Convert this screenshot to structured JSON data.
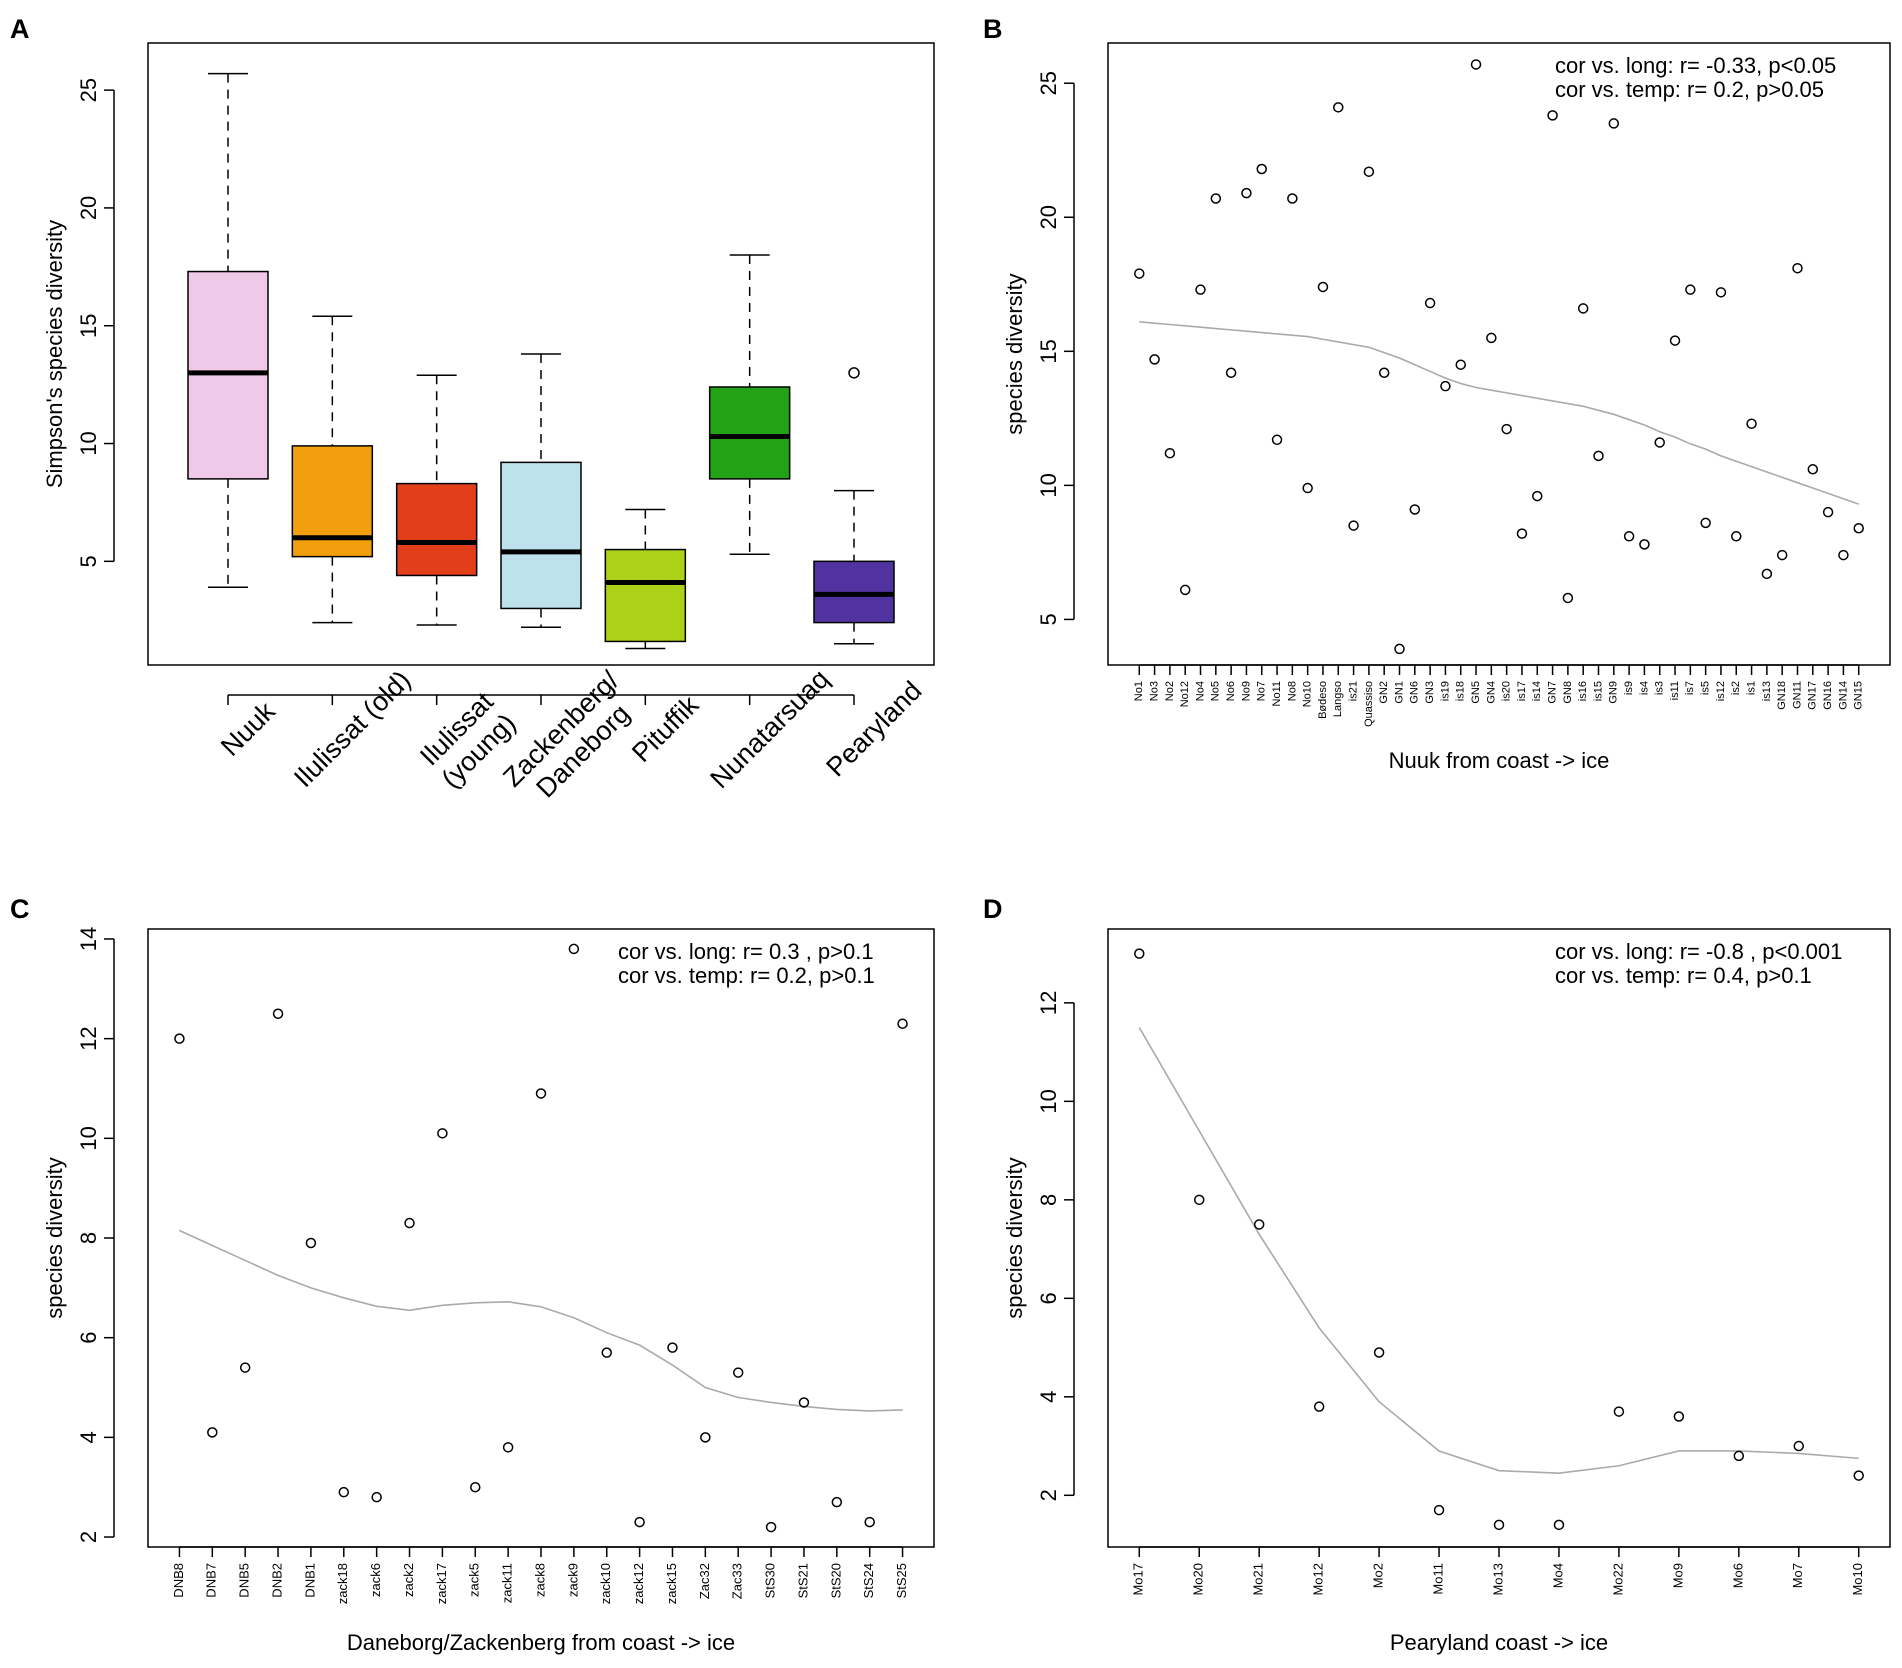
{
  "chart_data": [
    {
      "panel": "A",
      "type": "boxplot",
      "ylabel": "Simpson's species diversity",
      "ylim": [
        0.6,
        27.0
      ],
      "yticks": [
        5,
        10,
        15,
        20,
        25
      ],
      "groups": [
        {
          "name": "Nuuk",
          "label_lines": [
            "Nuuk"
          ],
          "color": "#F0C8E8",
          "whisker_low": 3.9,
          "q1": 8.5,
          "median": 13.0,
          "q3": 17.3,
          "whisker_high": 25.7,
          "outliers": []
        },
        {
          "name": "Ilulissat (old)",
          "label_lines": [
            "Ilulissat (old)"
          ],
          "color": "#F29F0F",
          "whisker_low": 2.4,
          "q1": 5.2,
          "median": 6.0,
          "q3": 9.9,
          "whisker_high": 15.4,
          "outliers": []
        },
        {
          "name": "Ilulissat (young)",
          "label_lines": [
            "Ilulissat",
            "(young)"
          ],
          "color": "#E23E19",
          "whisker_low": 2.3,
          "q1": 4.4,
          "median": 5.8,
          "q3": 8.3,
          "whisker_high": 12.9,
          "outliers": []
        },
        {
          "name": "Zackenberg/ Daneborg",
          "label_lines": [
            "Zackenberg/",
            "Daneborg"
          ],
          "color": "#BDE2EC",
          "whisker_low": 2.2,
          "q1": 3.0,
          "median": 5.4,
          "q3": 9.2,
          "whisker_high": 13.8,
          "outliers": []
        },
        {
          "name": "Pituffik",
          "label_lines": [
            "Pituffik"
          ],
          "color": "#ABD119",
          "whisker_low": 1.3,
          "q1": 1.6,
          "median": 4.1,
          "q3": 5.5,
          "whisker_high": 7.2,
          "outliers": []
        },
        {
          "name": "Nunatarsuaq",
          "label_lines": [
            "Nunatarsuaq"
          ],
          "color": "#22A214",
          "whisker_low": 5.3,
          "q1": 8.5,
          "median": 10.3,
          "q3": 12.4,
          "whisker_high": 18.0,
          "outliers": []
        },
        {
          "name": "Pearyland",
          "label_lines": [
            "Pearyland"
          ],
          "color": "#5032A0",
          "whisker_low": 1.5,
          "q1": 2.4,
          "median": 3.6,
          "q3": 5.0,
          "whisker_high": 8.0,
          "outliers": [
            13.0
          ]
        }
      ]
    },
    {
      "panel": "B",
      "type": "scatter",
      "xlabel": "Nuuk from coast -> ice",
      "ylabel": "species diversity",
      "ylim": [
        3.3,
        26.5
      ],
      "yticks": [
        5,
        10,
        15,
        20,
        25
      ],
      "annotation": [
        "cor vs. long: r= -0.33, p<0.05",
        "cor vs. temp: r= 0.2, p>0.05"
      ],
      "categories": [
        "No1",
        "No3",
        "No2",
        "No12",
        "No4",
        "No5",
        "No6",
        "No9",
        "No7",
        "No11",
        "No8",
        "No10",
        "Bødeso",
        "Langso",
        "is21",
        "Quassiso",
        "GN2",
        "GN1",
        "GN6",
        "GN3",
        "is19",
        "is18",
        "GN5",
        "GN4",
        "is20",
        "is17",
        "is14",
        "GN7",
        "GN8",
        "is16",
        "is15",
        "GN9",
        "is9",
        "is4",
        "is3",
        "is11",
        "is7",
        "is5",
        "is12",
        "is2",
        "is1",
        "is13",
        "GN18",
        "GN11",
        "GN17",
        "GN16",
        "GN14",
        "GN15"
      ],
      "values": [
        17.9,
        14.7,
        11.2,
        6.1,
        17.3,
        20.7,
        14.2,
        20.9,
        21.8,
        11.7,
        20.7,
        9.9,
        17.4,
        24.1,
        8.5,
        21.7,
        14.2,
        3.9,
        9.1,
        16.8,
        13.7,
        14.5,
        25.7,
        15.5,
        12.1,
        8.2,
        9.6,
        23.8,
        5.8,
        16.6,
        11.1,
        23.5,
        8.1,
        7.8,
        11.6,
        15.4,
        17.3,
        8.6,
        17.2,
        8.1,
        12.3,
        6.7,
        7.4,
        18.1,
        10.6,
        9.0,
        7.4,
        8.4
      ],
      "trend": [
        16.1,
        16.05,
        16.0,
        15.95,
        15.9,
        15.85,
        15.8,
        15.75,
        15.7,
        15.65,
        15.6,
        15.55,
        15.45,
        15.35,
        15.25,
        15.15,
        14.95,
        14.75,
        14.5,
        14.25,
        14.0,
        13.8,
        13.65,
        13.55,
        13.45,
        13.35,
        13.25,
        13.15,
        13.05,
        12.95,
        12.8,
        12.65,
        12.45,
        12.25,
        12.0,
        11.8,
        11.55,
        11.35,
        11.1,
        10.9,
        10.7,
        10.5,
        10.3,
        10.1,
        9.9,
        9.7,
        9.5,
        9.3
      ]
    },
    {
      "panel": "C",
      "type": "scatter",
      "xlabel": "Daneborg/Zackenberg from coast -> ice",
      "ylabel": "species diversity",
      "ylim": [
        1.8,
        14.2
      ],
      "yticks": [
        2,
        4,
        6,
        8,
        10,
        12,
        14
      ],
      "annotation": [
        "cor vs. long: r= 0.3 , p>0.1",
        "cor vs. temp: r= 0.2, p>0.1"
      ],
      "categories": [
        "DNB8",
        "DNB7",
        "DNB5",
        "DNB2",
        "DNB1",
        "zack18",
        "zack6",
        "zack2",
        "zack17",
        "zack5",
        "zack11",
        "zack8",
        "zack9",
        "zack10",
        "zack12",
        "zack15",
        "Zac32",
        "Zac33",
        "StS30",
        "StS21",
        "StS20",
        "StS24",
        "StS25"
      ],
      "values": [
        12.0,
        4.1,
        5.4,
        12.5,
        7.9,
        2.9,
        2.8,
        8.3,
        10.1,
        3.0,
        3.8,
        10.9,
        13.8,
        5.7,
        2.3,
        5.8,
        4.0,
        5.3,
        2.2,
        4.7,
        2.7,
        2.3,
        12.3
      ],
      "trend": [
        8.15,
        7.85,
        7.55,
        7.25,
        7.0,
        6.8,
        6.63,
        6.55,
        6.65,
        6.7,
        6.72,
        6.62,
        6.4,
        6.1,
        5.85,
        5.45,
        5.0,
        4.8,
        4.7,
        4.62,
        4.56,
        4.53,
        4.55
      ]
    },
    {
      "panel": "D",
      "type": "scatter",
      "xlabel": "Pearyland coast -> ice",
      "ylabel": "species diversity",
      "ylim": [
        0.95,
        13.5
      ],
      "yticks": [
        2,
        4,
        6,
        8,
        10,
        12
      ],
      "annotation": [
        "cor vs. long: r= -0.8 , p<0.001",
        "cor vs. temp: r= 0.4, p>0.1"
      ],
      "categories": [
        "Mo17",
        "Mo20",
        "Mo21",
        "Mo12",
        "Mo2",
        "Mo11",
        "Mo13",
        "Mo4",
        "Mo22",
        "Mo9",
        "Mo6",
        "Mo7",
        "Mo10"
      ],
      "values": [
        13.0,
        8.0,
        7.5,
        3.8,
        4.9,
        1.7,
        1.4,
        1.4,
        3.7,
        3.6,
        2.8,
        3.0,
        2.4
      ],
      "trend": [
        11.5,
        9.4,
        7.3,
        5.4,
        3.9,
        2.9,
        2.5,
        2.45,
        2.6,
        2.9,
        2.9,
        2.85,
        2.75
      ]
    }
  ]
}
